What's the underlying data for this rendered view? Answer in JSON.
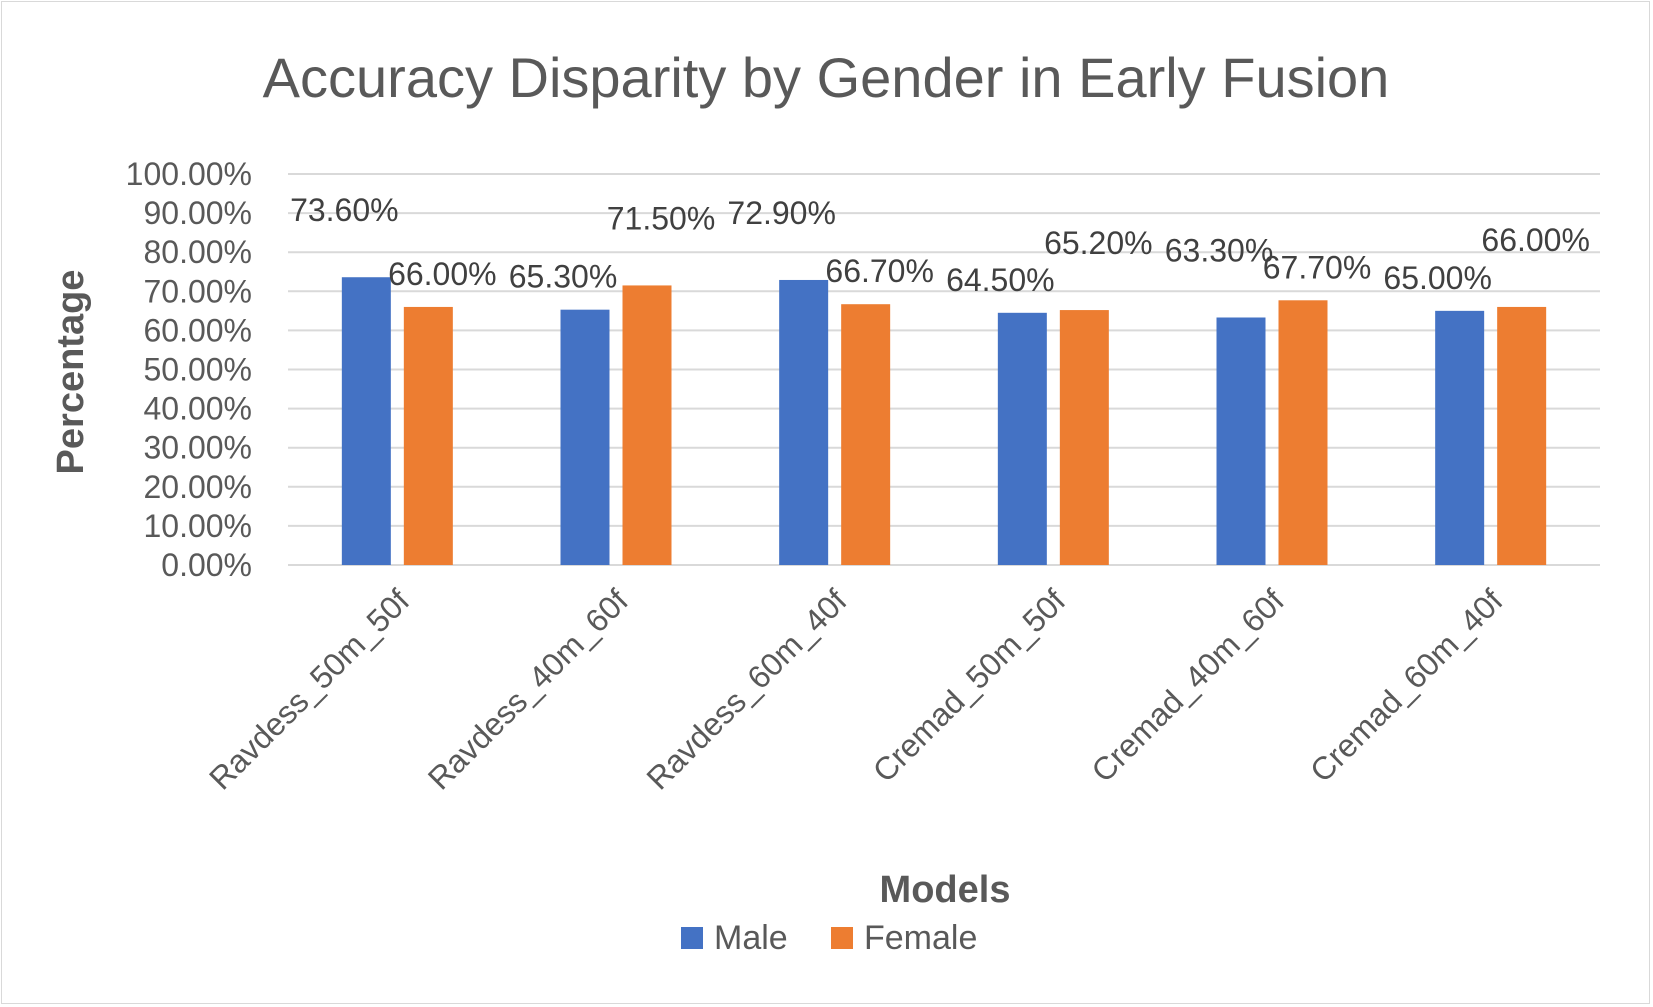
{
  "chart_data": {
    "type": "bar",
    "title": "Accuracy Disparity by Gender in Early Fusion",
    "xlabel": "Models",
    "ylabel": "Percentage",
    "categories": [
      "Ravdess_50m_50f",
      "Ravdess_40m_60f",
      "Ravdess_60m_40f",
      "Cremad_50m_50f",
      "Cremad_40m_60f",
      "Cremad_60m_40f"
    ],
    "series": [
      {
        "name": "Male",
        "color": "#4472c4",
        "values": [
          73.6,
          65.3,
          72.9,
          64.5,
          63.3,
          65.0
        ],
        "labels": [
          "73.60%",
          "65.30%",
          "72.90%",
          "64.50%",
          "63.30%",
          "65.00%"
        ]
      },
      {
        "name": "Female",
        "color": "#ed7d31",
        "values": [
          66.0,
          71.5,
          66.7,
          65.2,
          67.7,
          66.0
        ],
        "labels": [
          "66.00%",
          "71.50%",
          "66.70%",
          "65.20%",
          "67.70%",
          "66.00%"
        ]
      }
    ],
    "ylim": [
      0,
      100
    ],
    "yticks": [
      "0.00%",
      "10.00%",
      "20.00%",
      "30.00%",
      "40.00%",
      "50.00%",
      "60.00%",
      "70.00%",
      "80.00%",
      "90.00%",
      "100.00%"
    ],
    "grid": true,
    "legend_position": "bottom"
  }
}
